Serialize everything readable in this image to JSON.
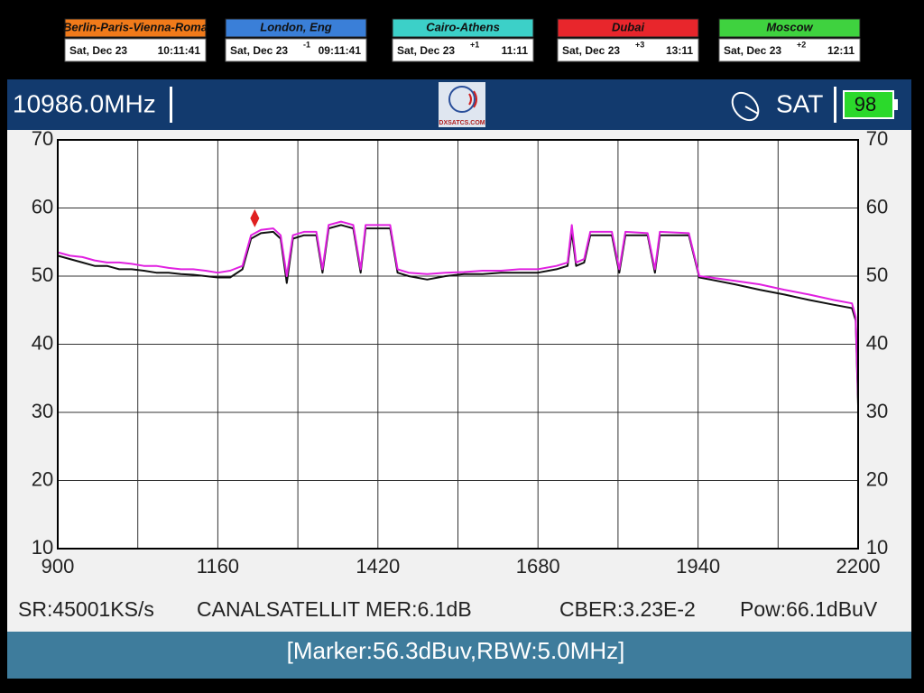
{
  "clocks": [
    {
      "city": "Berlin-Paris-Vienna-Roma",
      "color": "#f07a1a",
      "date": "Sat, Dec 23",
      "time": "10:11:41"
    },
    {
      "city": "London, Eng",
      "color": "#3a7fd8",
      "date": "Sat, Dec 23",
      "offset": "-1",
      "time": "09:11:41"
    },
    {
      "city": "Cairo-Athens",
      "color": "#3cd0c8",
      "date": "Sat, Dec 23",
      "offset": "+1",
      "time": "11:11"
    },
    {
      "city": "Dubai",
      "color": "#e8262c",
      "date": "Sat, Dec 23",
      "offset": "+3",
      "time": "13:11"
    },
    {
      "city": "Moscow",
      "color": "#3fd23f",
      "date": "Sat, Dec 23",
      "offset": "+2",
      "time": "12:11"
    }
  ],
  "header": {
    "frequency": "10986.0MHz",
    "logo": "DXSATCS.COM",
    "mode": "SAT",
    "battery": "98"
  },
  "status": {
    "sr": "SR:45001KS/s",
    "channel": "CANALSATELLIT MER:6.1dB",
    "cber": "CBER:3.23E-2",
    "power": "Pow:66.1dBuV"
  },
  "footer": "[Marker:56.3dBuv,RBW:5.0MHz]",
  "chart_data": {
    "type": "line",
    "xlim": [
      900,
      2200
    ],
    "xticks": [
      900,
      1160,
      1420,
      1680,
      1940,
      2200
    ],
    "ylim": [
      10,
      70
    ],
    "yticks": [
      10,
      20,
      30,
      40,
      50,
      60,
      70
    ],
    "grid": true,
    "x": [
      900,
      920,
      940,
      960,
      980,
      1000,
      1020,
      1040,
      1060,
      1080,
      1100,
      1120,
      1140,
      1160,
      1180,
      1200,
      1214,
      1230,
      1250,
      1262,
      1272,
      1282,
      1300,
      1320,
      1330,
      1340,
      1360,
      1380,
      1392,
      1400,
      1420,
      1440,
      1452,
      1470,
      1500,
      1530,
      1560,
      1590,
      1620,
      1650,
      1680,
      1710,
      1728,
      1735,
      1742,
      1755,
      1765,
      1800,
      1812,
      1822,
      1858,
      1870,
      1878,
      1925,
      1942,
      1960,
      2000,
      2040,
      2080,
      2120,
      2160,
      2190,
      2196,
      2200
    ],
    "series": [
      {
        "color": "#111111",
        "values": [
          53,
          52.5,
          52,
          51.5,
          51.5,
          51,
          51,
          50.8,
          50.5,
          50.5,
          50.3,
          50.2,
          50,
          49.8,
          49.8,
          51,
          55.5,
          56.3,
          56.5,
          55.5,
          49,
          55.5,
          56,
          56,
          50.5,
          57,
          57.5,
          57,
          50.5,
          57,
          57,
          57,
          50.5,
          50,
          49.5,
          50,
          50.3,
          50.3,
          50.5,
          50.5,
          50.5,
          51,
          51.5,
          56.5,
          51.5,
          52,
          56,
          56,
          50.5,
          56,
          56,
          50.5,
          56,
          56,
          49.8,
          49.5,
          48.8,
          48,
          47.3,
          46.5,
          45.8,
          45.3,
          43.5,
          31
        ]
      },
      {
        "color": "#e020e0",
        "values": [
          53.5,
          53,
          52.8,
          52.3,
          52,
          52,
          51.8,
          51.5,
          51.5,
          51.2,
          51,
          51,
          50.8,
          50.5,
          50.8,
          51.5,
          56,
          56.8,
          57,
          56,
          50,
          56,
          56.5,
          56.5,
          51,
          57.5,
          58,
          57.5,
          51,
          57.5,
          57.5,
          57.5,
          51,
          50.5,
          50.3,
          50.5,
          50.6,
          50.8,
          50.8,
          51,
          51,
          51.5,
          52,
          57.5,
          52,
          52.5,
          56.5,
          56.5,
          51,
          56.5,
          56.3,
          51,
          56.5,
          56.3,
          50,
          49.8,
          49.3,
          48.8,
          48,
          47.3,
          46.5,
          46,
          44,
          32
        ]
      }
    ],
    "marker": {
      "x": 1220,
      "y": 58.5,
      "color": "#e02020"
    }
  }
}
